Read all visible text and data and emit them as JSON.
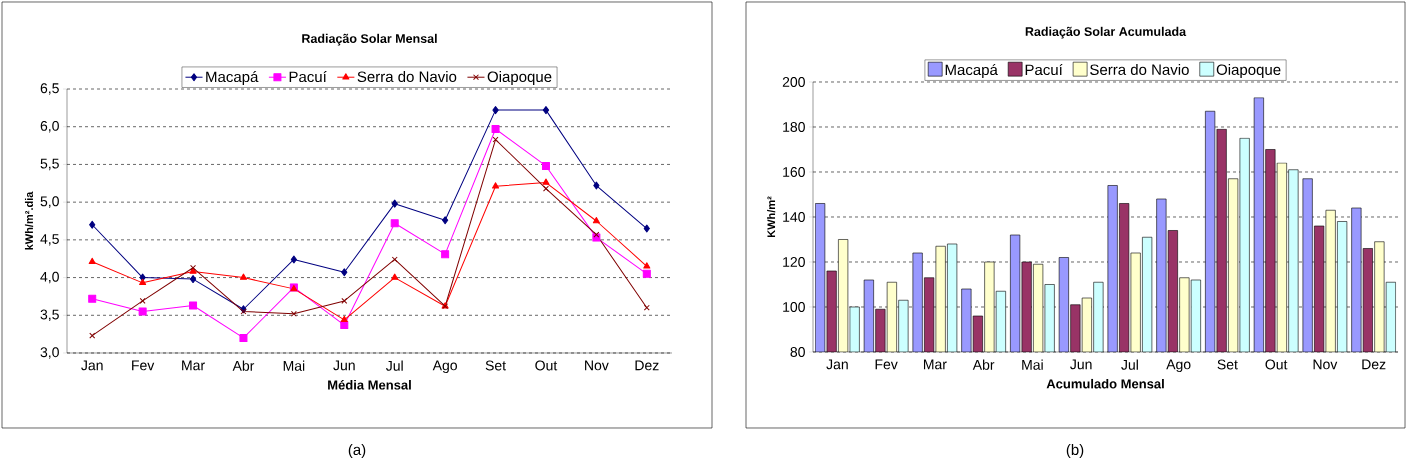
{
  "chart_data": [
    {
      "type": "line",
      "title": "Radiação Solar Mensal",
      "xlabel": "Média Mensal",
      "ylabel": "kWh/m².dia",
      "categories": [
        "Jan",
        "Fev",
        "Mar",
        "Abr",
        "Mai",
        "Jun",
        "Jul",
        "Ago",
        "Set",
        "Out",
        "Nov",
        "Dez"
      ],
      "series": [
        {
          "name": "Macapá",
          "color": "#000080",
          "marker": "diamond",
          "values": [
            4.7,
            4.0,
            3.98,
            3.58,
            4.24,
            4.07,
            4.98,
            4.76,
            6.22,
            6.22,
            5.22,
            4.65
          ]
        },
        {
          "name": "Pacuí",
          "color": "#ff00ff",
          "marker": "square",
          "values": [
            3.72,
            3.55,
            3.63,
            3.2,
            3.87,
            3.37,
            4.72,
            4.31,
            5.97,
            5.48,
            4.53,
            4.05
          ]
        },
        {
          "name": "Serra do Navio",
          "color": "#ff0000",
          "marker": "triangle",
          "values": [
            4.21,
            3.93,
            4.08,
            4.0,
            3.85,
            3.44,
            4.0,
            3.62,
            5.21,
            5.26,
            4.75,
            4.15
          ]
        },
        {
          "name": "Oiapoque",
          "color": "#800000",
          "marker": "cross",
          "values": [
            3.23,
            3.69,
            4.13,
            3.55,
            3.52,
            3.69,
            4.24,
            3.62,
            5.83,
            5.18,
            4.57,
            3.6
          ]
        }
      ],
      "ylim": [
        3.0,
        6.5
      ],
      "yticks": [
        {
          "value": 3.0,
          "label": "3,0"
        },
        {
          "value": 3.5,
          "label": "3,5"
        },
        {
          "value": 4.0,
          "label": "4,0"
        },
        {
          "value": 4.5,
          "label": "4,5"
        },
        {
          "value": 5.0,
          "label": "5,0"
        },
        {
          "value": 5.5,
          "label": "5,5"
        },
        {
          "value": 6.0,
          "label": "6,0"
        },
        {
          "value": 6.5,
          "label": "6,5"
        }
      ],
      "grid": "y",
      "legend": "top",
      "annotations": [
        "(a)"
      ]
    },
    {
      "type": "bar",
      "title": "Radiação Solar Acumulada",
      "xlabel": "Acumulado Mensal",
      "ylabel": "KWh/m²",
      "categories": [
        "Jan",
        "Fev",
        "Mar",
        "Abr",
        "Mai",
        "Jun",
        "Jul",
        "Ago",
        "Set",
        "Out",
        "Nov",
        "Dez"
      ],
      "series": [
        {
          "name": "Macapá",
          "color": "#9999ff",
          "values": [
            146,
            112,
            124,
            108,
            132,
            122,
            154,
            148,
            187,
            193,
            157,
            144
          ]
        },
        {
          "name": "Pacuí",
          "color": "#993366",
          "values": [
            116,
            99,
            113,
            96,
            120,
            101,
            146,
            134,
            179,
            170,
            136,
            126
          ]
        },
        {
          "name": "Serra do Navio",
          "color": "#ffffcc",
          "values": [
            130,
            111,
            127,
            120,
            119,
            104,
            124,
            113,
            157,
            164,
            143,
            129
          ]
        },
        {
          "name": "Oiapoque",
          "color": "#ccffff",
          "values": [
            100,
            103,
            128,
            107,
            110,
            111,
            131,
            112,
            175,
            161,
            138,
            111
          ]
        }
      ],
      "ylim": [
        80,
        200
      ],
      "yticks": [
        80,
        100,
        120,
        140,
        160,
        180,
        200
      ],
      "grid": "y",
      "legend": "top",
      "annotations": [
        "(b)"
      ]
    }
  ]
}
